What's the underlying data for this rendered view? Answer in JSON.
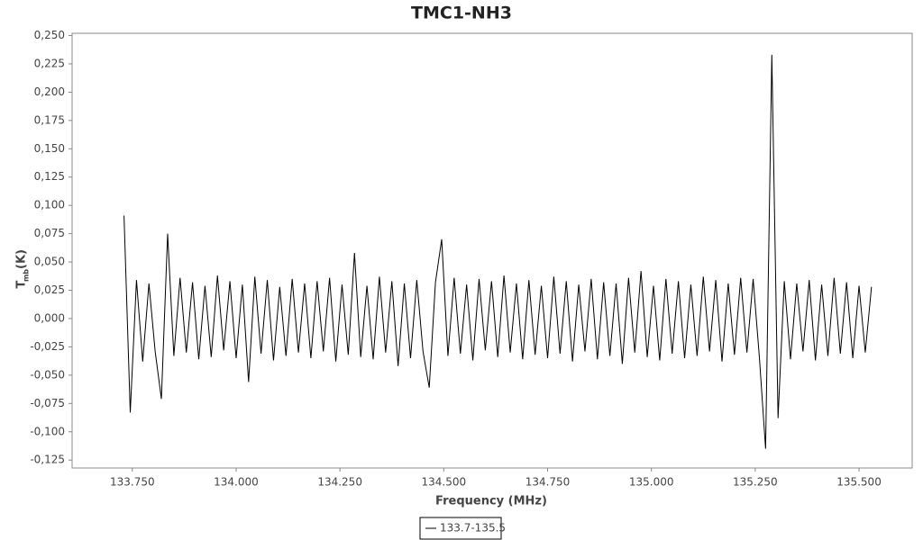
{
  "chart_data": {
    "type": "line",
    "title": "TMC1-NH3",
    "x_label": "Frequency (MHz)",
    "y_label_parts": [
      "T",
      "mb",
      "(K)"
    ],
    "xlim": [
      133.605,
      135.628
    ],
    "ylim": [
      -0.132,
      0.252
    ],
    "xticks": [
      {
        "value": 133.75,
        "label": "133.750"
      },
      {
        "value": 134,
        "label": "134.000"
      },
      {
        "value": 134.25,
        "label": "134.250"
      },
      {
        "value": 134.5,
        "label": "134.500"
      },
      {
        "value": 134.75,
        "label": "134.750"
      },
      {
        "value": 135,
        "label": "135.000"
      },
      {
        "value": 135.25,
        "label": "135.250"
      },
      {
        "value": 135.5,
        "label": "135.500"
      }
    ],
    "yticks": [
      {
        "value": 0.25,
        "label": "0,250"
      },
      {
        "value": 0.225,
        "label": "0,225"
      },
      {
        "value": 0.2,
        "label": "0,200"
      },
      {
        "value": 0.175,
        "label": "0,175"
      },
      {
        "value": 0.15,
        "label": "0,150"
      },
      {
        "value": 0.125,
        "label": "0,125"
      },
      {
        "value": 0.1,
        "label": "0,100"
      },
      {
        "value": 0.075,
        "label": "0,075"
      },
      {
        "value": 0.05,
        "label": "0,050"
      },
      {
        "value": 0.025,
        "label": "0,025"
      },
      {
        "value": 0,
        "label": "0,000"
      },
      {
        "value": -0.025,
        "label": "-0,025"
      },
      {
        "value": -0.05,
        "label": "-0,050"
      },
      {
        "value": -0.075,
        "label": "-0,075"
      },
      {
        "value": -0.1,
        "label": "-0,100"
      },
      {
        "value": -0.125,
        "label": "-0,125"
      }
    ],
    "grid": false,
    "x": [
      133.73,
      133.745,
      133.76,
      133.775,
      133.79,
      133.805,
      133.82,
      133.835,
      133.85,
      133.865,
      133.88,
      133.895,
      133.91,
      133.925,
      133.94,
      133.955,
      133.97,
      133.985,
      134,
      134.015,
      134.03,
      134.045,
      134.06,
      134.075,
      134.09,
      134.105,
      134.12,
      134.135,
      134.15,
      134.165,
      134.18,
      134.195,
      134.21,
      134.225,
      134.24,
      134.255,
      134.27,
      134.285,
      134.3,
      134.315,
      134.33,
      134.345,
      134.36,
      134.375,
      134.39,
      134.405,
      134.42,
      134.435,
      134.45,
      134.465,
      134.48,
      134.495,
      134.51,
      134.525,
      134.54,
      134.555,
      134.57,
      134.585,
      134.6,
      134.615,
      134.63,
      134.645,
      134.66,
      134.675,
      134.69,
      134.705,
      134.72,
      134.735,
      134.75,
      134.765,
      134.78,
      134.795,
      134.81,
      134.825,
      134.84,
      134.855,
      134.87,
      134.885,
      134.9,
      134.915,
      134.93,
      134.945,
      134.96,
      134.975,
      134.99,
      135.005,
      135.02,
      135.035,
      135.05,
      135.065,
      135.08,
      135.095,
      135.11,
      135.125,
      135.14,
      135.155,
      135.17,
      135.185,
      135.2,
      135.215,
      135.23,
      135.245,
      135.26,
      135.275,
      135.29,
      135.305,
      135.32,
      135.335,
      135.35,
      135.365,
      135.38,
      135.395,
      135.41,
      135.425,
      135.44,
      135.455,
      135.47,
      135.485,
      135.5,
      135.515,
      135.53
    ],
    "series": [
      {
        "name": "133.7-135.5",
        "color": "#000000",
        "values": [
          0.091,
          -0.083,
          0.034,
          -0.038,
          0.031,
          -0.029,
          -0.071,
          0.075,
          -0.033,
          0.036,
          -0.03,
          0.032,
          -0.036,
          0.029,
          -0.034,
          0.038,
          -0.028,
          0.033,
          -0.035,
          0.03,
          -0.056,
          0.037,
          -0.031,
          0.034,
          -0.037,
          0.028,
          -0.033,
          0.035,
          -0.03,
          0.031,
          -0.035,
          0.033,
          -0.029,
          0.036,
          -0.038,
          0.03,
          -0.032,
          0.058,
          -0.034,
          0.029,
          -0.036,
          0.037,
          -0.03,
          0.033,
          -0.042,
          0.031,
          -0.035,
          0.034,
          -0.029,
          -0.061,
          0.032,
          0.07,
          -0.033,
          0.036,
          -0.031,
          0.03,
          -0.037,
          0.035,
          -0.028,
          0.033,
          -0.034,
          0.038,
          -0.03,
          0.031,
          -0.036,
          0.034,
          -0.032,
          0.029,
          -0.035,
          0.037,
          -0.031,
          0.033,
          -0.038,
          0.03,
          -0.029,
          0.035,
          -0.036,
          0.032,
          -0.033,
          0.031,
          -0.04,
          0.036,
          -0.03,
          0.042,
          -0.034,
          0.029,
          -0.037,
          0.035,
          -0.031,
          0.033,
          -0.035,
          0.03,
          -0.033,
          0.037,
          -0.029,
          0.034,
          -0.038,
          0.031,
          -0.032,
          0.036,
          -0.03,
          0.035,
          -0.034,
          -0.115,
          0.233,
          -0.088,
          0.033,
          -0.036,
          0.031,
          -0.029,
          0.034,
          -0.037,
          0.03,
          -0.033,
          0.036,
          -0.031,
          0.032,
          -0.035,
          0.029,
          -0.03,
          0.028
        ]
      }
    ]
  }
}
